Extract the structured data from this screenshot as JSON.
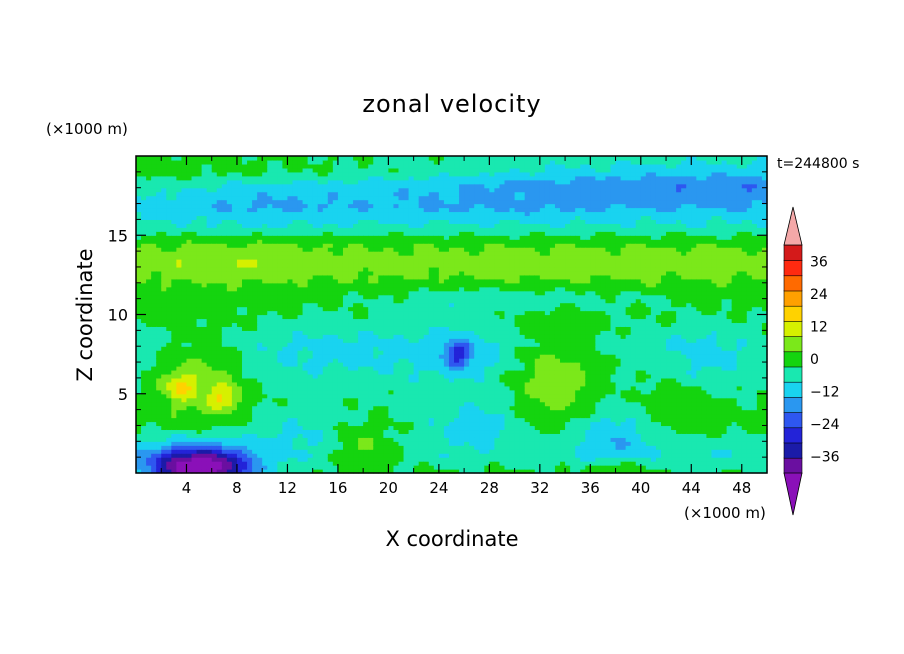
{
  "chart_data": {
    "type": "heatmap",
    "title": "zonal velocity",
    "xlabel": "X coordinate",
    "ylabel": "Z coordinate",
    "x_unit": "(×1000 m)",
    "y_unit": "(×1000 m)",
    "time_label": "t=244800 s",
    "xlim": [
      0,
      50
    ],
    "ylim": [
      0,
      20
    ],
    "x_ticks": [
      4,
      8,
      12,
      16,
      20,
      24,
      28,
      32,
      36,
      40,
      44,
      48
    ],
    "y_ticks": [
      5,
      10,
      15
    ],
    "x_tick_labels": [
      "4",
      "8",
      "12",
      "16",
      "20",
      "24",
      "28",
      "32",
      "36",
      "40",
      "44",
      "48"
    ],
    "y_tick_labels": [
      "5",
      "10",
      "15"
    ],
    "colorbar": {
      "levels": [
        -42,
        -36,
        -30,
        -24,
        -18,
        -12,
        -6,
        0,
        6,
        12,
        18,
        24,
        30,
        36,
        42
      ],
      "colors": [
        "#6a0fa0",
        "#1b1ba8",
        "#2323d8",
        "#2e57f0",
        "#2a97f0",
        "#19d3f0",
        "#19e8b0",
        "#14d40f",
        "#7be81a",
        "#d6f000",
        "#ffd200",
        "#ffa000",
        "#ff6a00",
        "#ff2a10",
        "#d41a1a"
      ],
      "under_color": "#8a10b8",
      "over_color": "#f4a8a8",
      "labels": [
        "36",
        "24",
        "12",
        "0",
        "−12",
        "−24",
        "−36"
      ],
      "label_values": [
        36,
        24,
        12,
        0,
        -12,
        -24,
        -36
      ]
    },
    "features": [
      {
        "x": 50,
        "z": 18.5,
        "value": -14,
        "sx": 30,
        "sz": 1.6
      },
      {
        "x": 10,
        "z": 17.2,
        "value": -10,
        "sx": 6,
        "sz": 1.5
      },
      {
        "x": 30,
        "z": 18.2,
        "value": -4,
        "sx": 18,
        "sz": 1.2
      },
      {
        "x": 25,
        "z": 16.8,
        "value": -10,
        "sx": 14,
        "sz": 1.0
      },
      {
        "x": 8,
        "z": 13.3,
        "value": 12,
        "sx": 6,
        "sz": 1.1
      },
      {
        "x": 35,
        "z": 13.3,
        "value": 10,
        "sx": 12,
        "sz": 1.0
      },
      {
        "x": 20,
        "z": 13,
        "value": 8,
        "sx": 12,
        "sz": 1.0
      },
      {
        "x": 45,
        "z": 12.5,
        "value": 7,
        "sx": 6,
        "sz": 1.0
      },
      {
        "x": 30,
        "z": 11,
        "value": -4,
        "sx": 12,
        "sz": 0.8
      },
      {
        "x": 5,
        "z": 6,
        "value": 9,
        "sx": 3.5,
        "sz": 2.8
      },
      {
        "x": 3.5,
        "z": 5.5,
        "value": 12,
        "sx": 1.2,
        "sz": 0.8
      },
      {
        "x": 7,
        "z": 4.8,
        "value": 13,
        "sx": 1.2,
        "sz": 0.8
      },
      {
        "x": 16,
        "z": 7.5,
        "value": -8,
        "sx": 6,
        "sz": 2.2
      },
      {
        "x": 25.5,
        "z": 7.5,
        "value": -10,
        "sx": 4,
        "sz": 2.5
      },
      {
        "x": 25.5,
        "z": 7.5,
        "value": -22,
        "sx": 1,
        "sz": 0.8
      },
      {
        "x": 33.5,
        "z": 6,
        "value": 10,
        "sx": 3.5,
        "sz": 3.5
      },
      {
        "x": 45,
        "z": 7,
        "value": -8,
        "sx": 3,
        "sz": 2.5
      },
      {
        "x": 43,
        "z": 4.5,
        "value": 7,
        "sx": 3,
        "sz": 1.5
      },
      {
        "x": 37.5,
        "z": 2.5,
        "value": -12,
        "sx": 3.5,
        "sz": 2.0
      },
      {
        "x": 13,
        "z": 2.8,
        "value": -6,
        "sx": 4,
        "sz": 1.5
      },
      {
        "x": 18,
        "z": 1.5,
        "value": 7,
        "sx": 2.5,
        "sz": 1.2
      },
      {
        "x": 27,
        "z": 3,
        "value": -8,
        "sx": 5,
        "sz": 1.5
      },
      {
        "x": 5,
        "z": 0.3,
        "value": -34,
        "sx": 3.5,
        "sz": 1.1
      },
      {
        "x": 5,
        "z": 0.5,
        "value": -20,
        "sx": 5,
        "sz": 1.8
      },
      {
        "x": 38,
        "z": 0.3,
        "value": 10,
        "sx": 2,
        "sz": 0.5
      },
      {
        "x": 46,
        "z": 1.5,
        "value": -5,
        "sx": 3,
        "sz": 1.3
      }
    ]
  }
}
